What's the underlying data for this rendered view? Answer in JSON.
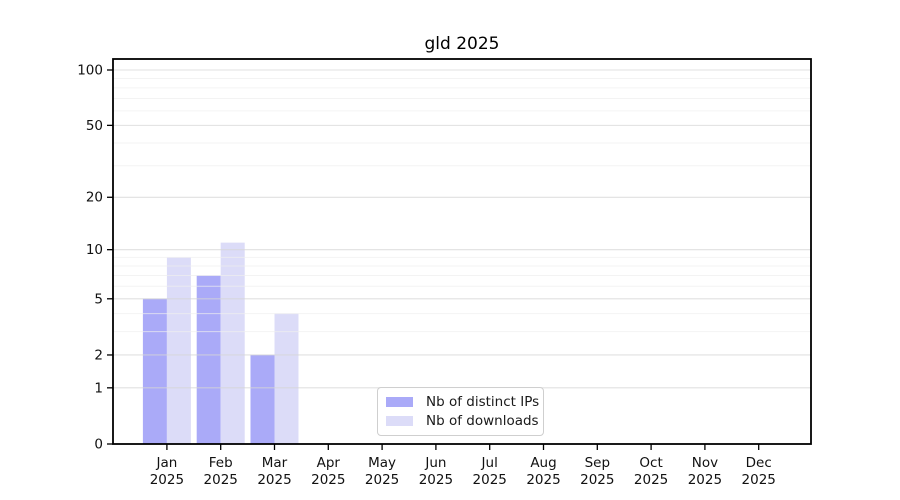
{
  "chart_data": {
    "type": "bar",
    "title": "gld 2025",
    "xlabel": "",
    "ylabel": "",
    "categories": [
      "Jan 2025",
      "Feb 2025",
      "Mar 2025",
      "Apr 2025",
      "May 2025",
      "Jun 2025",
      "Jul 2025",
      "Aug 2025",
      "Sep 2025",
      "Oct 2025",
      "Nov 2025",
      "Dec 2025"
    ],
    "series": [
      {
        "name": "Nb of distinct IPs",
        "color": "#aaaaf8",
        "values": [
          5,
          7,
          2,
          null,
          null,
          null,
          null,
          null,
          null,
          null,
          null,
          null
        ]
      },
      {
        "name": "Nb of downloads",
        "color": "#dcdcf8",
        "values": [
          9,
          11,
          4,
          null,
          null,
          null,
          null,
          null,
          null,
          null,
          null,
          null
        ]
      }
    ],
    "yscale": "log(1+y)",
    "yticks": [
      0,
      1,
      2,
      5,
      10,
      20,
      50,
      100
    ],
    "minor_gridlines": [
      3,
      4,
      6,
      7,
      8,
      9,
      30,
      40,
      60,
      70,
      80,
      90
    ],
    "ylim": [
      0,
      114
    ],
    "grid": true,
    "legend_position": "bottom-center",
    "colors": {
      "background": "#ffffff",
      "axis": "#000000",
      "major_grid": "#d6d6d6",
      "minor_grid": "#efefef",
      "tick_text": "#111111"
    }
  }
}
